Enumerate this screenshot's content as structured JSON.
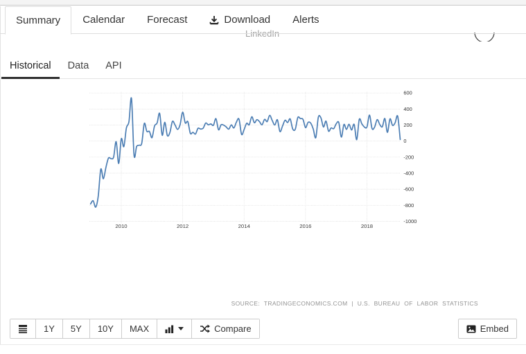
{
  "header": {
    "tabs": [
      {
        "label": "Summary",
        "active": true
      },
      {
        "label": "Calendar",
        "active": false
      },
      {
        "label": "Forecast",
        "active": false
      },
      {
        "label": "Download",
        "active": false,
        "icon": "download-icon"
      },
      {
        "label": "Alerts",
        "active": false
      }
    ]
  },
  "peek": {
    "linkedin": "LinkedIn"
  },
  "sub_tabs": [
    {
      "label": "Historical",
      "active": true
    },
    {
      "label": "Data",
      "active": false
    },
    {
      "label": "API",
      "active": false
    }
  ],
  "chart_data": {
    "type": "line",
    "title": "",
    "xlabel": "",
    "ylabel": "",
    "frequency": "monthly",
    "start_year": 2009,
    "start_month": 1,
    "x_tick_labels": [
      "2010",
      "2012",
      "2014",
      "2016",
      "2018"
    ],
    "y_ticks": [
      600,
      400,
      200,
      0,
      -200,
      -400,
      -600,
      -800,
      -1000
    ],
    "ylim": [
      -1000,
      600
    ],
    "grid": "dotted",
    "legend": "none",
    "line_color": "#4b7db3",
    "values": [
      -784,
      -743,
      -823,
      -686,
      -351,
      -470,
      -329,
      -212,
      -219,
      -200,
      -7,
      -279,
      28,
      -69,
      163,
      243,
      530,
      -175,
      -66,
      -51,
      -27,
      220,
      121,
      120,
      42,
      188,
      225,
      346,
      73,
      235,
      70,
      107,
      246,
      202,
      146,
      207,
      360,
      226,
      243,
      96,
      110,
      88,
      160,
      150,
      161,
      225,
      203,
      214,
      197,
      280,
      141,
      203,
      199,
      177,
      149,
      202,
      164,
      237,
      274,
      84,
      144,
      222,
      203,
      304,
      229,
      267,
      243,
      203,
      271,
      243,
      321,
      256,
      201,
      266,
      119,
      187,
      260,
      231,
      277,
      150,
      149,
      295,
      280,
      271,
      168,
      233,
      225,
      153,
      43,
      297,
      291,
      176,
      249,
      124,
      164,
      155,
      216,
      232,
      50,
      207,
      145,
      210,
      138,
      208,
      18,
      271,
      216,
      175,
      176,
      324,
      155,
      175,
      268,
      208,
      178,
      282,
      108,
      277,
      196,
      227,
      311,
      20
    ]
  },
  "source_note": "SOURCE: TRADINGECONOMICS.COM | U.S. BUREAU OF LABOR STATISTICS",
  "toolbar": {
    "ranges": [
      "1Y",
      "5Y",
      "10Y",
      "MAX"
    ],
    "compare_label": "Compare",
    "embed_label": "Embed"
  },
  "colors": {
    "accent_line": "#4b7db3",
    "grid": "#cdcdcd",
    "active_underline": "#2d2d2d",
    "tab_border": "#dddddd"
  }
}
